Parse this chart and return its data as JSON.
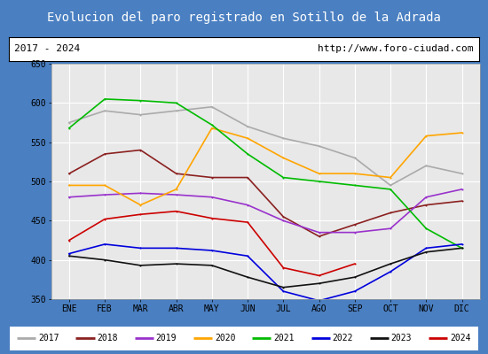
{
  "title": "Evolucion del paro registrado en Sotillo de la Adrada",
  "subtitle_left": "2017 - 2024",
  "subtitle_right": "http://www.foro-ciudad.com",
  "title_bg": "#4a7fc1",
  "title_color": "white",
  "months": [
    "ENE",
    "FEB",
    "MAR",
    "ABR",
    "MAY",
    "JUN",
    "JUL",
    "AGO",
    "SEP",
    "OCT",
    "NOV",
    "DIC"
  ],
  "ylim": [
    350,
    650
  ],
  "yticks": [
    350,
    400,
    450,
    500,
    550,
    600,
    650
  ],
  "series": {
    "2017": {
      "color": "#aaaaaa",
      "data": [
        575,
        590,
        585,
        590,
        595,
        570,
        555,
        545,
        530,
        495,
        520,
        510
      ]
    },
    "2018": {
      "color": "#8b2020",
      "data": [
        510,
        535,
        540,
        510,
        505,
        505,
        455,
        430,
        445,
        460,
        470,
        475
      ]
    },
    "2019": {
      "color": "#9932cc",
      "data": [
        480,
        483,
        485,
        483,
        480,
        470,
        450,
        435,
        435,
        440,
        480,
        490
      ]
    },
    "2020": {
      "color": "#ffa500",
      "data": [
        495,
        495,
        470,
        490,
        568,
        555,
        530,
        510,
        510,
        505,
        558,
        562
      ]
    },
    "2021": {
      "color": "#00bb00",
      "data": [
        568,
        605,
        603,
        600,
        572,
        535,
        505,
        500,
        495,
        490,
        440,
        415
      ]
    },
    "2022": {
      "color": "#0000dd",
      "data": [
        408,
        420,
        415,
        415,
        412,
        405,
        360,
        348,
        360,
        385,
        415,
        420
      ]
    },
    "2023": {
      "color": "#111111",
      "data": [
        405,
        400,
        393,
        395,
        393,
        378,
        365,
        370,
        378,
        395,
        410,
        415
      ]
    },
    "2024": {
      "color": "#cc0000",
      "data": [
        425,
        452,
        458,
        462,
        453,
        448,
        390,
        380,
        395,
        null,
        null,
        null
      ]
    }
  }
}
